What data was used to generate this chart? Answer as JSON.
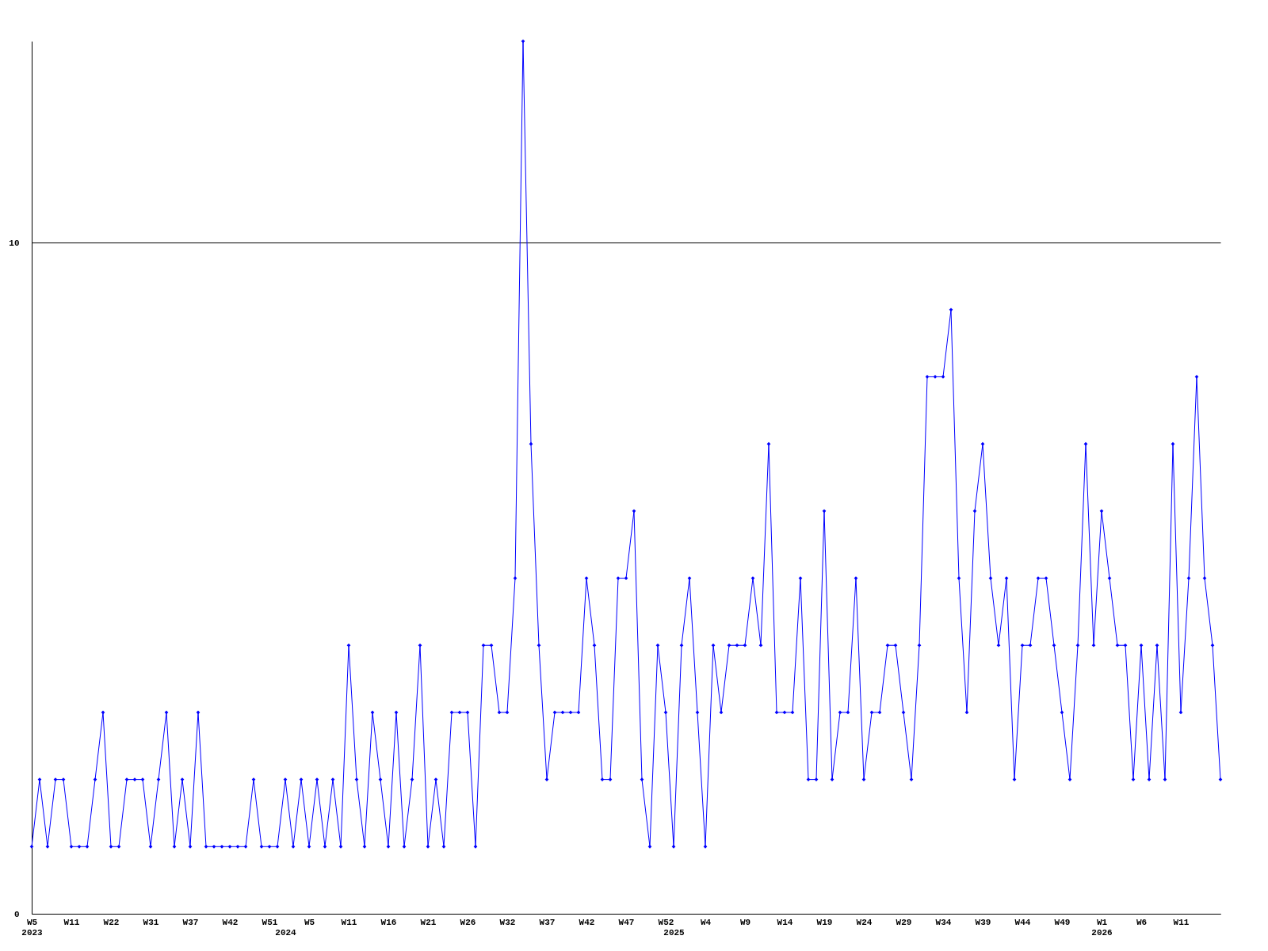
{
  "chart_data": {
    "type": "line",
    "categories": [
      "W5\n2023",
      null,
      null,
      null,
      null,
      "W11",
      null,
      null,
      null,
      null,
      "W22",
      null,
      null,
      null,
      null,
      "W31",
      null,
      null,
      null,
      null,
      "W37",
      null,
      null,
      null,
      null,
      "W42",
      null,
      null,
      null,
      null,
      "W51",
      null,
      "\n2024",
      null,
      null,
      "W5",
      null,
      null,
      null,
      null,
      "W11",
      null,
      null,
      null,
      null,
      "W16",
      null,
      null,
      null,
      null,
      "W21",
      null,
      null,
      null,
      null,
      "W26",
      null,
      null,
      null,
      null,
      "W32",
      null,
      null,
      null,
      null,
      "W37",
      null,
      null,
      null,
      null,
      "W42",
      null,
      null,
      null,
      null,
      "W47",
      null,
      null,
      null,
      null,
      "W52",
      "\n2025",
      null,
      null,
      null,
      "W4",
      null,
      null,
      null,
      null,
      "W9",
      null,
      null,
      null,
      null,
      "W14",
      null,
      null,
      null,
      null,
      "W19",
      null,
      null,
      null,
      null,
      "W24",
      null,
      null,
      null,
      null,
      "W29",
      null,
      null,
      null,
      null,
      "W34",
      null,
      null,
      null,
      null,
      "W39",
      null,
      null,
      null,
      null,
      "W44",
      null,
      null,
      null,
      null,
      "W49",
      null,
      null,
      null,
      null,
      "W1\n2026",
      null,
      null,
      null,
      null,
      "W6",
      null,
      null,
      null,
      null,
      "W11",
      null,
      null,
      null,
      null,
      null
    ],
    "series": [
      {
        "color": "#0000ff",
        "values": [
          1,
          2,
          1,
          2,
          2,
          1,
          1,
          1,
          2,
          3,
          1,
          1,
          2,
          2,
          2,
          1,
          2,
          3,
          1,
          2,
          1,
          3,
          1,
          1,
          1,
          1,
          1,
          1,
          2,
          1,
          1,
          1,
          2,
          1,
          2,
          1,
          2,
          1,
          2,
          1,
          4,
          2,
          1,
          3,
          2,
          1,
          3,
          1,
          2,
          4,
          1,
          2,
          1,
          3,
          3,
          3,
          1,
          4,
          4,
          3,
          3,
          5,
          13,
          7,
          4,
          2,
          3,
          3,
          3,
          3,
          5,
          4,
          2,
          2,
          5,
          5,
          6,
          2,
          1,
          4,
          3,
          1,
          4,
          5,
          3,
          1,
          4,
          3,
          4,
          4,
          4,
          5,
          4,
          7,
          3,
          3,
          3,
          5,
          2,
          2,
          6,
          2,
          3,
          3,
          5,
          2,
          3,
          3,
          4,
          4,
          3,
          2,
          4,
          8,
          8,
          8,
          9,
          5,
          3,
          6,
          7,
          5,
          4,
          5,
          2,
          4,
          4,
          5,
          5,
          4,
          3,
          2,
          4,
          7,
          4,
          6,
          5,
          4,
          4,
          2,
          4,
          2,
          4,
          2,
          7,
          3,
          5,
          8,
          5,
          4,
          2
        ]
      }
    ],
    "ylim": [
      0,
      13
    ],
    "yticks": [
      0,
      10
    ],
    "grid": "y",
    "marker": "diamond",
    "line_style": "solid",
    "legend": false
  }
}
